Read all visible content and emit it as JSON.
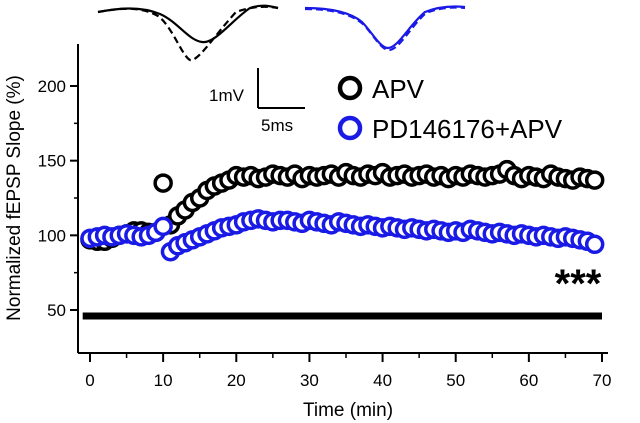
{
  "chart_data": {
    "type": "scatter",
    "title": "",
    "xlabel": "Time (min)",
    "ylabel": "Normalized fEPSP Slope (%)",
    "xlim": [
      -1.5,
      71
    ],
    "ylim": [
      18,
      235
    ],
    "xticks": [
      0,
      10,
      20,
      30,
      40,
      50,
      60,
      70
    ],
    "yticks": [
      50,
      100,
      150,
      200
    ],
    "grid": false,
    "legend_position": "top-right",
    "series": [
      {
        "name": "APV",
        "color": "#000000",
        "x": [
          0,
          1,
          2,
          3,
          4,
          5,
          6,
          7,
          8,
          9,
          10,
          11,
          12,
          13,
          14,
          15,
          16,
          17,
          18,
          19,
          20,
          21,
          22,
          23,
          24,
          25,
          26,
          27,
          28,
          29,
          30,
          31,
          32,
          33,
          34,
          35,
          36,
          37,
          38,
          39,
          40,
          41,
          42,
          43,
          44,
          45,
          46,
          47,
          48,
          49,
          50,
          51,
          52,
          53,
          54,
          55,
          56,
          57,
          58,
          59,
          60,
          61,
          62,
          63,
          64,
          65,
          66,
          67,
          68,
          69
        ],
        "y": [
          97,
          96,
          96,
          98,
          100,
          101,
          103,
          103,
          102,
          102,
          135,
          107,
          113,
          117,
          122,
          125,
          130,
          133,
          135,
          137,
          140,
          139,
          140,
          138,
          139,
          141,
          140,
          139,
          141,
          138,
          140,
          139,
          140,
          141,
          139,
          142,
          140,
          139,
          141,
          140,
          142,
          139,
          140,
          141,
          139,
          140,
          141,
          139,
          140,
          138,
          140,
          139,
          141,
          140,
          139,
          140,
          141,
          144,
          140,
          138,
          140,
          139,
          138,
          141,
          139,
          138,
          137,
          139,
          138,
          137
        ]
      },
      {
        "name": "PD146176+APV",
        "color": "#1a1ae6",
        "x": [
          0,
          1,
          2,
          3,
          4,
          5,
          6,
          7,
          8,
          9,
          10,
          11,
          12,
          13,
          14,
          15,
          16,
          17,
          18,
          19,
          20,
          21,
          22,
          23,
          24,
          25,
          26,
          27,
          28,
          29,
          30,
          31,
          32,
          33,
          34,
          35,
          36,
          37,
          38,
          39,
          40,
          41,
          42,
          43,
          44,
          45,
          46,
          47,
          48,
          49,
          50,
          51,
          52,
          53,
          54,
          55,
          56,
          57,
          58,
          59,
          60,
          61,
          62,
          63,
          64,
          65,
          66,
          67,
          68,
          69
        ],
        "y": [
          98,
          99,
          100,
          99,
          100,
          101,
          100,
          99,
          100,
          102,
          106,
          89,
          93,
          95,
          97,
          99,
          101,
          103,
          105,
          106,
          107,
          109,
          110,
          111,
          110,
          109,
          110,
          110,
          109,
          108,
          110,
          109,
          108,
          107,
          109,
          108,
          107,
          106,
          107,
          106,
          105,
          106,
          105,
          104,
          105,
          104,
          103,
          104,
          103,
          102,
          103,
          102,
          104,
          103,
          102,
          101,
          102,
          101,
          100,
          101,
          100,
          99,
          100,
          99,
          98,
          99,
          98,
          97,
          96,
          94
        ]
      }
    ],
    "annotations": {
      "bar_label": "",
      "bar_y": 46,
      "bar_x": [
        -1,
        70
      ],
      "significance": "***",
      "scale_bar_v": "1mV",
      "scale_bar_h": "5ms"
    }
  }
}
